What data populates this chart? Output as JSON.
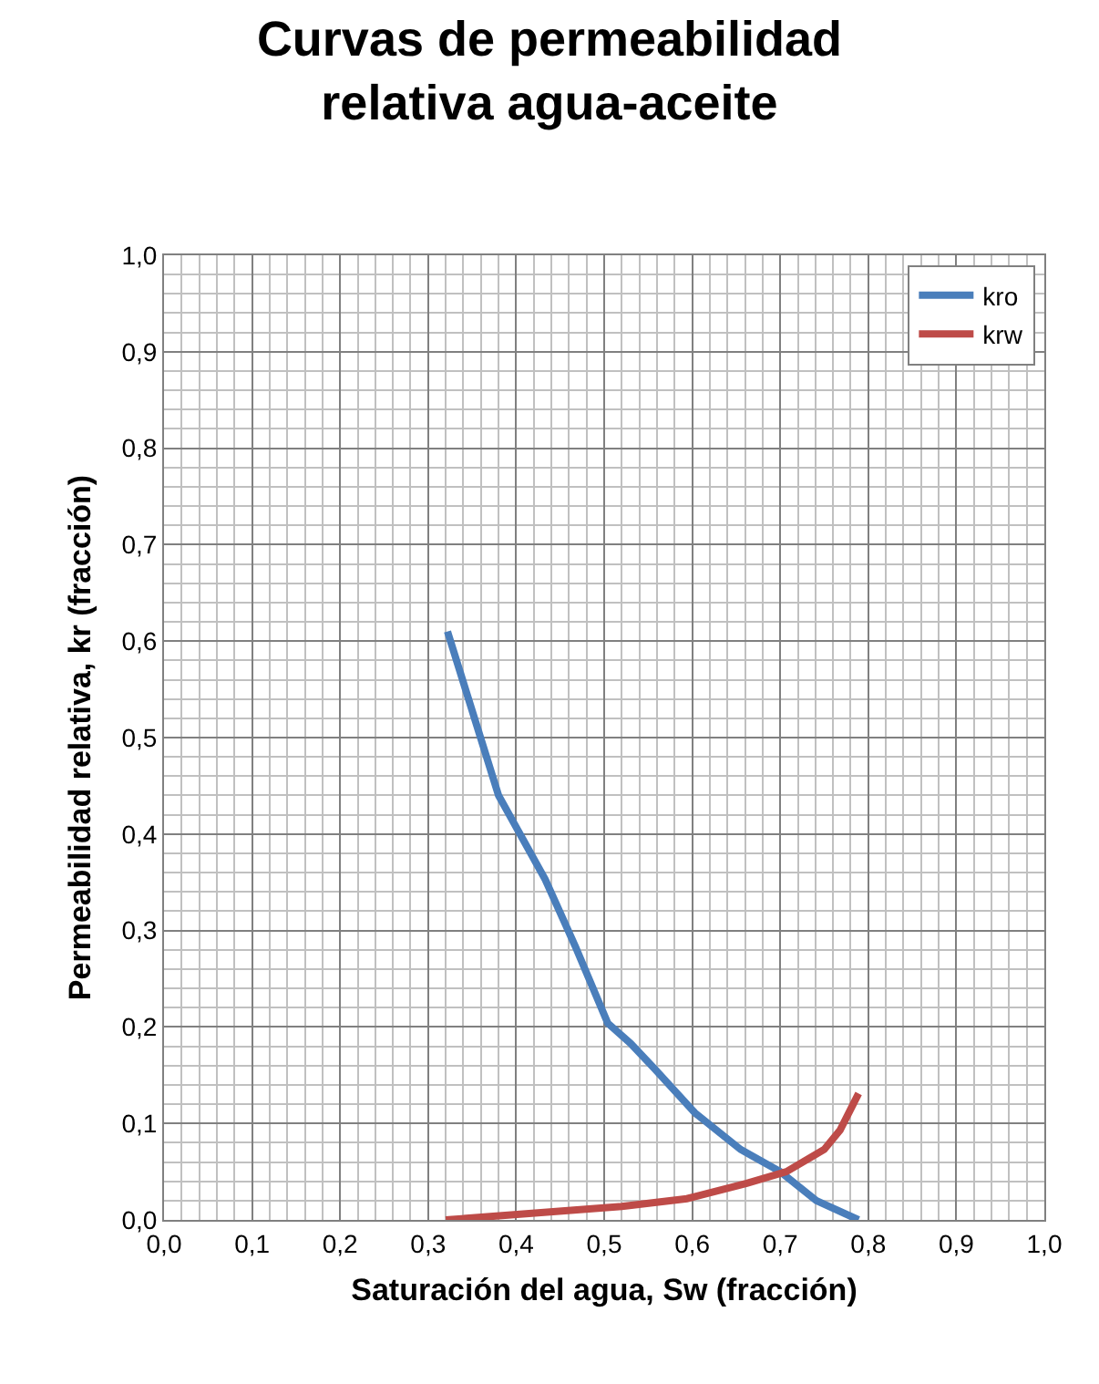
{
  "chart_data": {
    "type": "line",
    "title": "Curvas de permeabilidad relativa agua-aceite",
    "xlabel": "Saturación del agua, Sw (fracción)",
    "ylabel": "Permeabilidad relativa, kr (fracción)",
    "series": [
      {
        "name": "kro",
        "color": "#4a7ebb",
        "x": [
          0.322,
          0.38,
          0.433,
          0.467,
          0.504,
          0.53,
          0.557,
          0.603,
          0.655,
          0.7,
          0.741,
          0.789
        ],
        "values": [
          0.61,
          0.44,
          0.353,
          0.284,
          0.204,
          0.183,
          0.157,
          0.111,
          0.073,
          0.05,
          0.02,
          0
        ]
      },
      {
        "name": "krw",
        "color": "#be4b48",
        "x": [
          0.32,
          0.52,
          0.594,
          0.662,
          0.707,
          0.75,
          0.768,
          0.789
        ],
        "values": [
          0,
          0.014,
          0.022,
          0.038,
          0.05,
          0.073,
          0.093,
          0.131
        ]
      }
    ],
    "xlim": [
      0,
      1
    ],
    "xticks": [
      {
        "value": 0,
        "label": "0,0"
      },
      {
        "value": 0.1,
        "label": "0,1"
      },
      {
        "value": 0.2,
        "label": "0,2"
      },
      {
        "value": 0.3,
        "label": "0,3"
      },
      {
        "value": 0.4,
        "label": "0,4"
      },
      {
        "value": 0.5,
        "label": "0,5"
      },
      {
        "value": 0.6,
        "label": "0,6"
      },
      {
        "value": 0.7,
        "label": "0,7"
      },
      {
        "value": 0.8,
        "label": "0,8"
      },
      {
        "value": 0.9,
        "label": "0,9"
      },
      {
        "value": 1,
        "label": "1,0"
      }
    ],
    "ylim": [
      0,
      1
    ],
    "yticks": [
      {
        "value": 0,
        "label": "0,0"
      },
      {
        "value": 0.1,
        "label": "0,1"
      },
      {
        "value": 0.2,
        "label": "0,2"
      },
      {
        "value": 0.3,
        "label": "0,3"
      },
      {
        "value": 0.4,
        "label": "0,4"
      },
      {
        "value": 0.5,
        "label": "0,5"
      },
      {
        "value": 0.6,
        "label": "0,6"
      },
      {
        "value": 0.7,
        "label": "0,7"
      },
      {
        "value": 0.8,
        "label": "0,8"
      },
      {
        "value": 0.9,
        "label": "0,9"
      },
      {
        "value": 1,
        "label": "1,0"
      }
    ],
    "grid": true,
    "legend": "top right",
    "marker": "none",
    "line_style": "solid"
  }
}
